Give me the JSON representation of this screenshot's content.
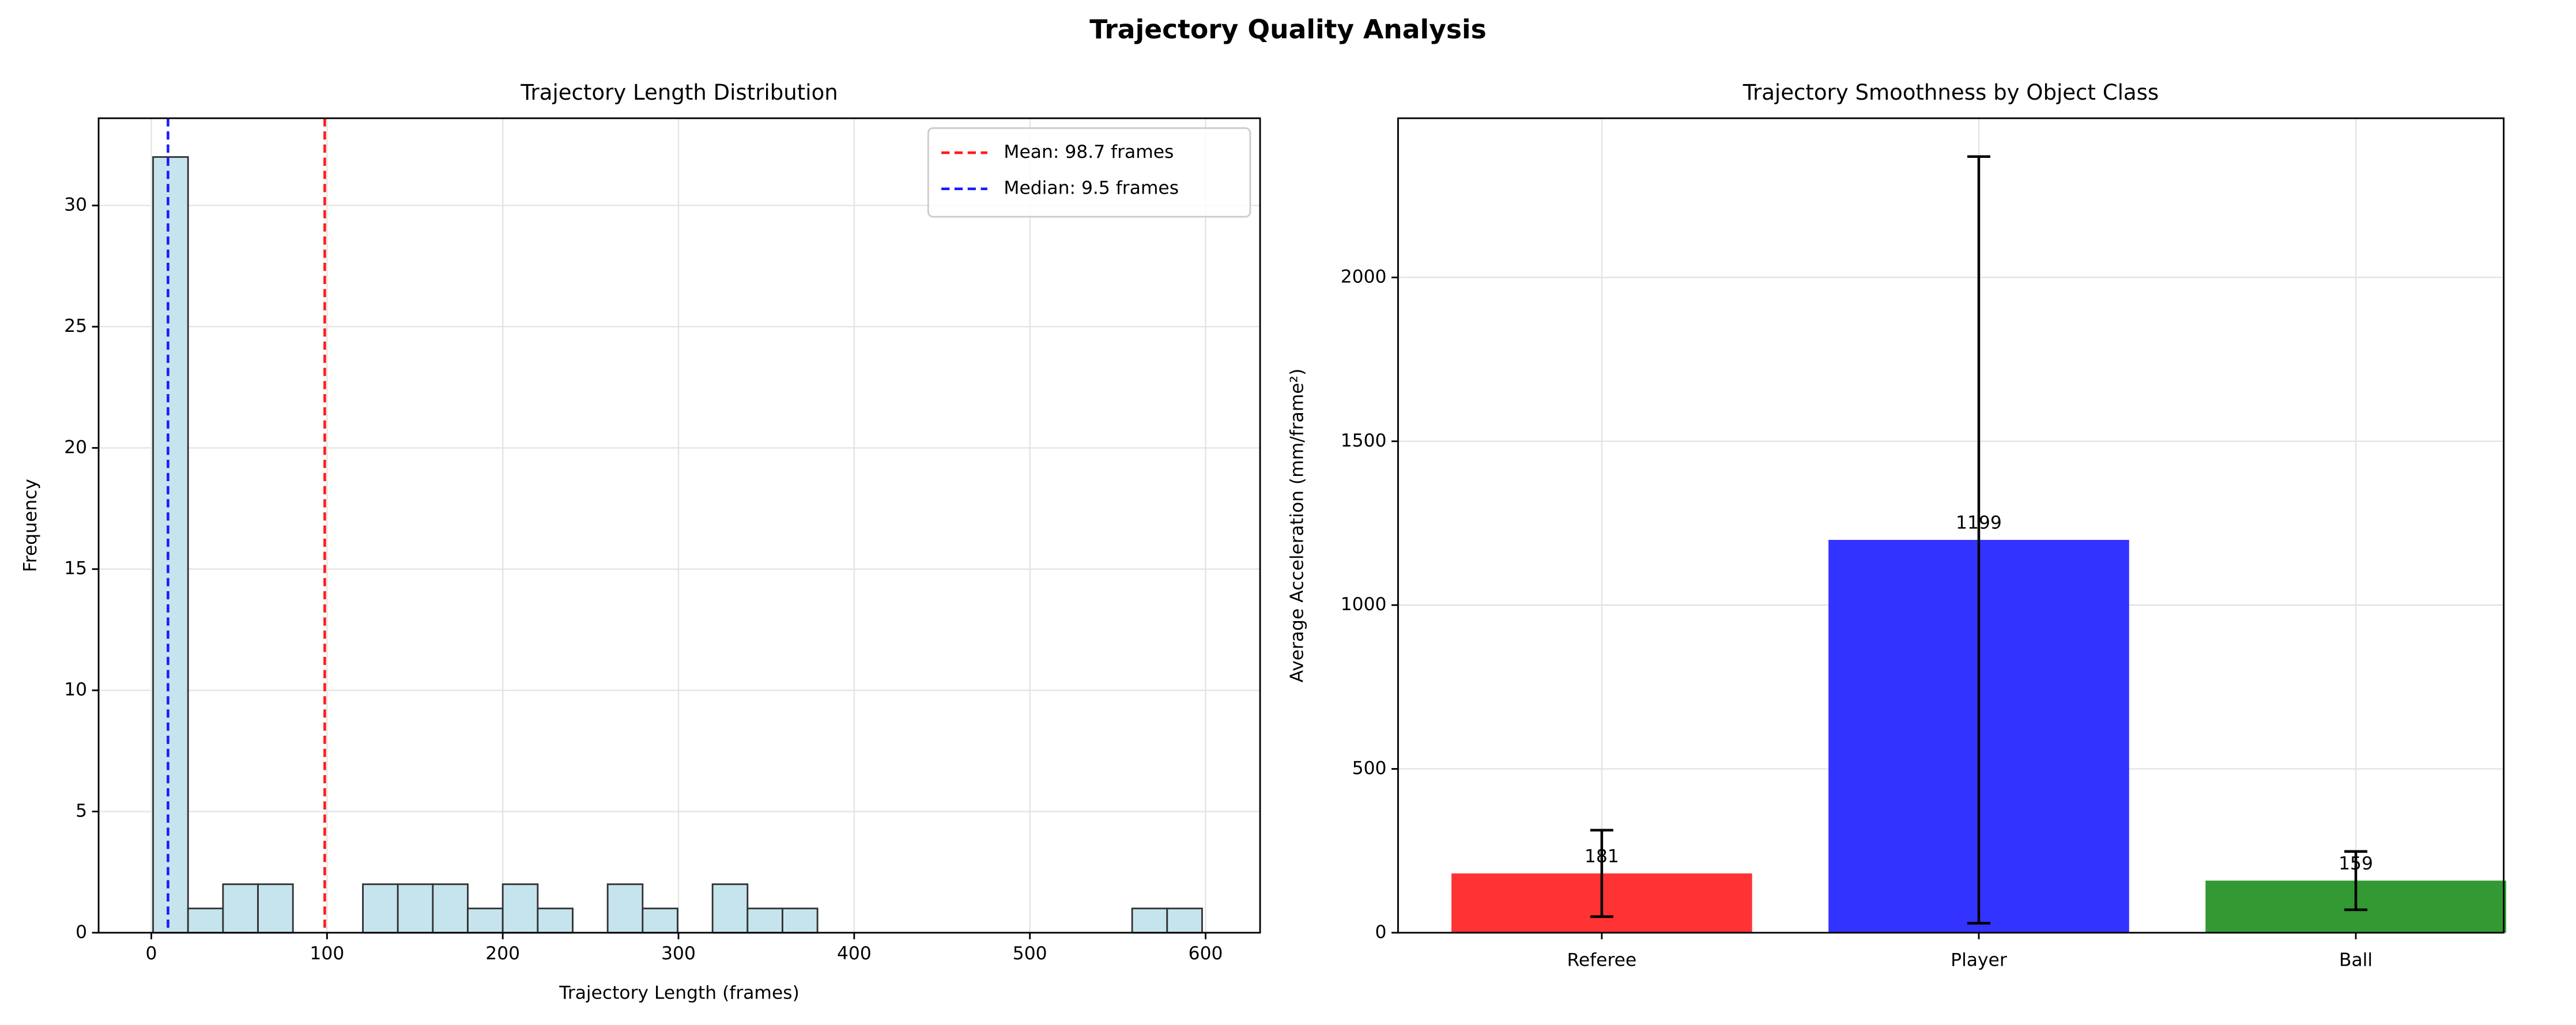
{
  "title": "Trajectory Quality Analysis",
  "chart_data": [
    {
      "type": "histogram",
      "title": "Trajectory Length Distribution",
      "x_label": "Trajectory Length (frames)",
      "y_label": "Frequency",
      "bins": [
        1,
        20.9,
        40.8,
        60.7,
        80.6,
        100.5,
        120.4,
        140.3,
        160.2,
        180.1,
        200,
        219.9,
        239.8,
        259.7,
        279.6,
        299.5,
        319.4,
        339.3,
        359.2,
        379.1,
        399,
        418.9,
        438.8,
        458.7,
        478.6,
        498.5,
        518.4,
        538.3,
        558.2,
        578.1,
        598
      ],
      "values": [
        32,
        1,
        2,
        2,
        0,
        0,
        2,
        2,
        2,
        1,
        2,
        1,
        0,
        2,
        1,
        0,
        2,
        1,
        1,
        0,
        0,
        0,
        0,
        0,
        0,
        0,
        0,
        0,
        1,
        1
      ],
      "color": "#c6e4ee",
      "edge_color": "#333333",
      "reference_lines": [
        {
          "name": "Mean: 98.7 frames",
          "value": 98.7,
          "color": "#ff1a1a"
        },
        {
          "name": "Median: 9.5 frames",
          "value": 9.5,
          "color": "#1a1aff"
        }
      ],
      "xlim": [
        -30,
        631
      ],
      "xticks": [
        0,
        100,
        200,
        300,
        400,
        500,
        600
      ],
      "ylim": [
        0,
        33.6
      ],
      "yticks": [
        0,
        5,
        10,
        15,
        20,
        25,
        30
      ],
      "grid": true,
      "legend": "upper right"
    },
    {
      "type": "bar",
      "title": "Trajectory Smoothness by Object Class",
      "y_label": "Average Acceleration (mm/frame²)",
      "categories": [
        "Referee",
        "Player",
        "Ball"
      ],
      "values": [
        181,
        1199,
        159
      ],
      "errors": [
        132,
        1170,
        89
      ],
      "colors": [
        "#ff3333",
        "#3333ff",
        "#339933"
      ],
      "ylim": [
        0,
        2486
      ],
      "yticks": [
        0,
        500,
        1000,
        1500,
        2000
      ],
      "grid": true
    }
  ]
}
